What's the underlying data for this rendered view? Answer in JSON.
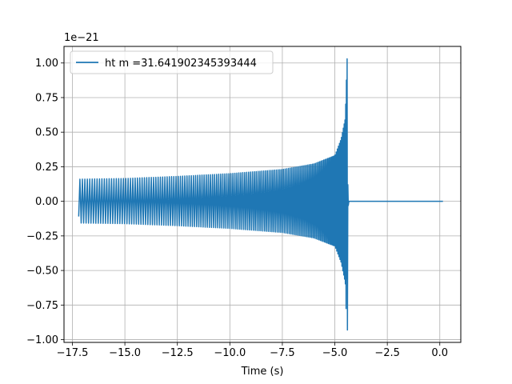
{
  "chart_data": {
    "type": "line",
    "title": "",
    "xlabel": "Time (s)",
    "ylabel": "",
    "offset_label": "1e−21",
    "xlim": [
      -17.9,
      1.0
    ],
    "ylim": [
      -1.02,
      1.12
    ],
    "grid": true,
    "legend_position": "upper left",
    "xticks": [
      -17.5,
      -15.0,
      -12.5,
      -10.0,
      -7.5,
      -5.0,
      -2.5,
      0.0
    ],
    "xtick_labels": [
      "−17.5",
      "−15.0",
      "−12.5",
      "−10.0",
      "−7.5",
      "−5.0",
      "−2.5",
      "0.0"
    ],
    "yticks": [
      -1.0,
      -0.75,
      -0.5,
      -0.25,
      0.0,
      0.25,
      0.5,
      0.75,
      1.0
    ],
    "ytick_labels": [
      "−1.00",
      "−0.75",
      "−0.50",
      "−0.25",
      "0.00",
      "0.25",
      "0.50",
      "0.75",
      "1.00"
    ],
    "series": [
      {
        "name": "ht m =31.641902345393444",
        "color": "#1f77b4",
        "signal": {
          "kind": "chirp",
          "t_start": -17.2,
          "t_merger": -4.4,
          "t_end": 0.15,
          "amplitude_envelope": [
            [
              -17.2,
              0.16
            ],
            [
              -15.0,
              0.165
            ],
            [
              -12.5,
              0.18
            ],
            [
              -10.0,
              0.2
            ],
            [
              -7.5,
              0.23
            ],
            [
              -6.0,
              0.27
            ],
            [
              -5.0,
              0.33
            ],
            [
              -4.7,
              0.45
            ],
            [
              -4.5,
              0.6
            ],
            [
              -4.42,
              1.03
            ],
            [
              -4.38,
              0.0
            ]
          ],
          "peak_max": 1.03,
          "peak_min": -0.93,
          "post_merger_value": 0.0
        }
      }
    ]
  }
}
